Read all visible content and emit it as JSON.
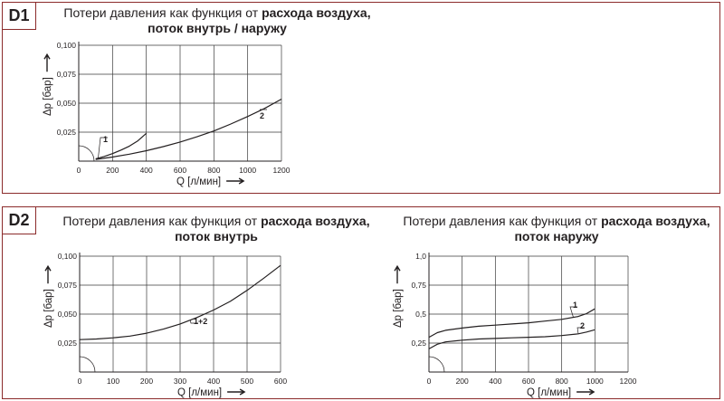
{
  "panels": {
    "d1": {
      "tag": "D1"
    },
    "d2": {
      "tag": "D2"
    }
  },
  "chart_data": [
    {
      "type": "line",
      "title_normal": "Потери давления как функция от",
      "title_bold_1": "расхода воздуха,",
      "title_bold_2": "поток внутрь / наружу",
      "xlabel": "Q [л/мин]",
      "ylabel": "Δp [бар]",
      "xlim": [
        0,
        1200
      ],
      "ylim": [
        0,
        0.1
      ],
      "xticks": [
        "0",
        "200",
        "400",
        "600",
        "800",
        "1000",
        "1200"
      ],
      "yticks": [
        "0,025",
        "0,050",
        "0,075",
        "0,100"
      ],
      "grid": true,
      "series": [
        {
          "name": "1",
          "x": [
            100,
            150,
            200,
            250,
            300,
            350,
            400
          ],
          "y": [
            0.002,
            0.004,
            0.0065,
            0.0095,
            0.013,
            0.0175,
            0.024
          ]
        },
        {
          "name": "2",
          "x": [
            100,
            200,
            300,
            400,
            500,
            600,
            700,
            800,
            900,
            1000,
            1100,
            1200
          ],
          "y": [
            0.0015,
            0.0035,
            0.006,
            0.009,
            0.0125,
            0.0165,
            0.021,
            0.026,
            0.032,
            0.0385,
            0.0455,
            0.0535
          ]
        }
      ]
    },
    {
      "type": "line",
      "title_normal": "Потери давления как функция от",
      "title_bold_1": "расхода воздуха,",
      "title_bold_2": "поток внутрь",
      "xlabel": "Q [л/мин]",
      "ylabel": "Δp [бар]",
      "xlim": [
        0,
        600
      ],
      "ylim": [
        0,
        0.1
      ],
      "xticks": [
        "0",
        "100",
        "200",
        "300",
        "400",
        "500",
        "600"
      ],
      "yticks": [
        "0,025",
        "0,050",
        "0,075",
        "0,100"
      ],
      "grid": true,
      "series": [
        {
          "name": "1+2",
          "x": [
            0,
            50,
            100,
            150,
            200,
            250,
            300,
            350,
            400,
            450,
            500,
            550,
            600
          ],
          "y": [
            0.028,
            0.0285,
            0.0295,
            0.031,
            0.0335,
            0.037,
            0.0415,
            0.047,
            0.0535,
            0.061,
            0.0705,
            0.081,
            0.092
          ]
        }
      ]
    },
    {
      "type": "line",
      "title_normal": "Потери давления как функция от",
      "title_bold_1": "расхода воздуха,",
      "title_bold_2": "поток наружу",
      "xlabel": "Q [л/мин]",
      "ylabel": "Δp [бар]",
      "xlim": [
        0,
        1200
      ],
      "ylim": [
        0,
        1.0
      ],
      "xticks": [
        "0",
        "200",
        "400",
        "600",
        "800",
        "1000",
        "1200"
      ],
      "yticks": [
        "0,25",
        "0,5",
        "0,75",
        "1,0"
      ],
      "grid": true,
      "series": [
        {
          "name": "1",
          "x": [
            0,
            50,
            100,
            200,
            300,
            400,
            500,
            600,
            700,
            800,
            900,
            950,
            1000
          ],
          "y": [
            0.3,
            0.34,
            0.36,
            0.38,
            0.395,
            0.405,
            0.415,
            0.425,
            0.44,
            0.455,
            0.48,
            0.505,
            0.545
          ]
        },
        {
          "name": "2",
          "x": [
            0,
            50,
            100,
            200,
            300,
            400,
            500,
            600,
            700,
            800,
            900,
            950,
            1000
          ],
          "y": [
            0.2,
            0.24,
            0.26,
            0.275,
            0.285,
            0.29,
            0.295,
            0.3,
            0.305,
            0.315,
            0.33,
            0.345,
            0.365
          ]
        }
      ]
    }
  ]
}
